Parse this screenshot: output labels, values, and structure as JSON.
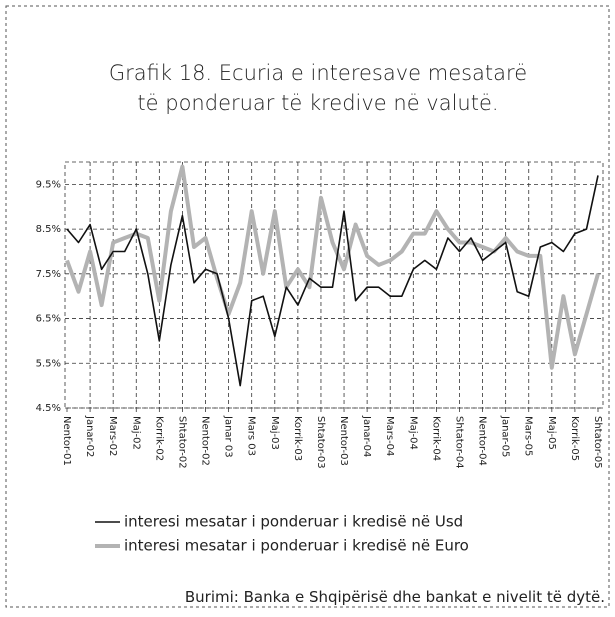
{
  "chart_data": {
    "type": "line",
    "title": [
      "Grafik 18. Ecuria e interesave mesatarë",
      "të ponderuar të kredive në valutë."
    ],
    "categories": [
      "Nentor-01",
      null,
      "Janar-02",
      null,
      "Mars-02",
      null,
      "Maj-02",
      null,
      "Korrik-02",
      null,
      "Shtator-02",
      null,
      "Nentor-02",
      null,
      "Janar 03",
      null,
      "Mars 03",
      null,
      "Maj-03",
      null,
      "Korrik-03",
      null,
      "Shtator-03",
      null,
      "Nentor-03",
      null,
      "Janar-04",
      null,
      "Mars-04",
      null,
      "Maj-04",
      null,
      "Korrik-04",
      null,
      "Shtator-04",
      null,
      "Nentor-04",
      null,
      "Janar-05",
      null,
      "Mars-05",
      null,
      "Maj-05",
      null,
      "Korrik-05",
      null,
      "Shtator-05"
    ],
    "series": [
      {
        "name": "interesi mesatar i ponderuar i kredisë në Usd",
        "color": "#111111",
        "values": [
          8.5,
          8.2,
          8.6,
          7.6,
          8.0,
          8.0,
          8.5,
          7.5,
          6.0,
          7.7,
          8.8,
          7.3,
          7.6,
          7.5,
          6.5,
          5.0,
          6.9,
          7.0,
          6.1,
          7.2,
          6.8,
          7.4,
          7.2,
          7.2,
          8.9,
          6.9,
          7.2,
          7.2,
          7.0,
          7.0,
          7.6,
          7.8,
          7.6,
          8.3,
          8.0,
          8.3,
          7.8,
          8.0,
          8.2,
          7.1,
          7.0,
          8.1,
          8.2,
          8.0,
          8.4,
          8.5,
          9.7
        ]
      },
      {
        "name": "interesi mesatar i ponderuar i kredisë në Euro",
        "color": "#b3b3b3",
        "values": [
          7.8,
          7.1,
          8.0,
          6.8,
          8.2,
          8.3,
          8.4,
          8.3,
          6.9,
          8.9,
          9.9,
          8.1,
          8.3,
          7.4,
          6.6,
          7.3,
          8.9,
          7.5,
          8.9,
          7.2,
          7.6,
          7.2,
          9.2,
          8.2,
          7.6,
          8.6,
          7.9,
          7.7,
          7.8,
          8.0,
          8.4,
          8.4,
          8.9,
          8.5,
          8.2,
          8.2,
          8.1,
          8.0,
          8.3,
          8.0,
          7.9,
          7.9,
          5.4,
          7.0,
          5.7,
          6.6,
          7.5
        ]
      }
    ],
    "ylim": [
      4.5,
      10
    ],
    "yticks": [
      {
        "value": 4.5,
        "label": "4.5%"
      },
      {
        "value": 5.5,
        "label": "5.5%"
      },
      {
        "value": 6.5,
        "label": "6.5%"
      },
      {
        "value": 7.5,
        "label": "7.5%"
      },
      {
        "value": 8.5,
        "label": "8.5%"
      },
      {
        "value": 9.5,
        "label": "9.5%"
      }
    ],
    "grid": true,
    "source": "Burimi: Banka e Shqipërisë dhe bankat e nivelit të dytë."
  }
}
